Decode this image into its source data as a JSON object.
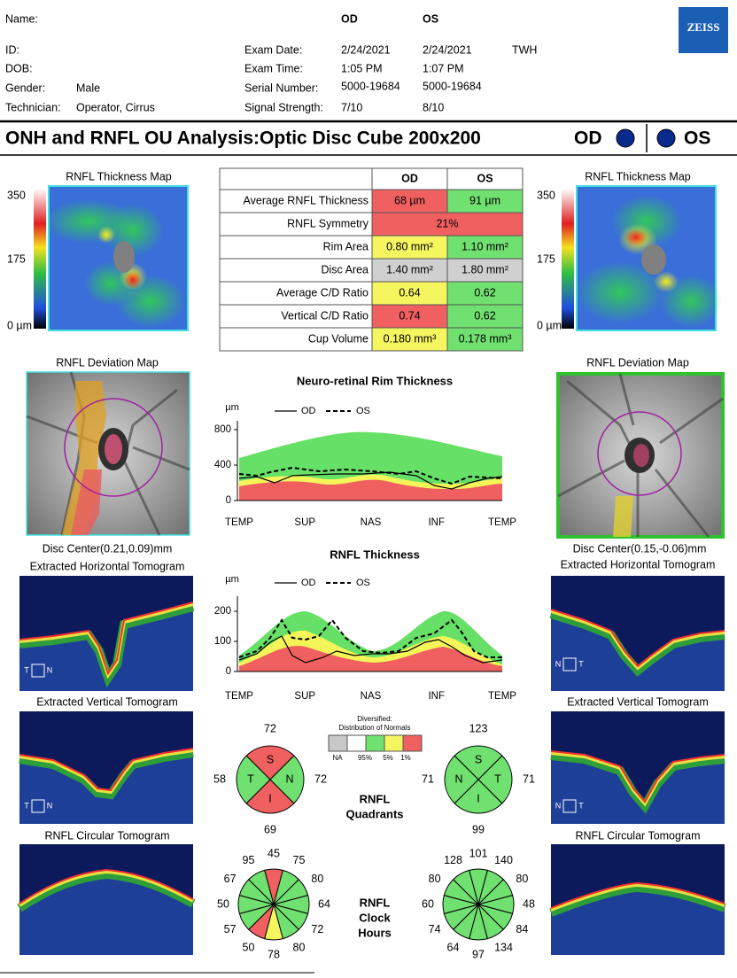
{
  "header": {
    "name_label": "Name:",
    "id_label": "ID:",
    "dob_label": "DOB:",
    "gender_label": "Gender:",
    "gender": "Male",
    "technician_label": "Technician:",
    "technician": "Operator, Cirrus",
    "od": "OD",
    "os": "OS",
    "logo": "ZEISS",
    "operator": "TWH",
    "fields": [
      {
        "label": "Exam Date:",
        "od": "2/24/2021",
        "os": "2/24/2021"
      },
      {
        "label": "Exam Time:",
        "od": "1:05 PM",
        "os": "1:07 PM"
      },
      {
        "label": "Serial Number:",
        "od": "5000-19684",
        "os": "5000-19684"
      },
      {
        "label": "Signal Strength:",
        "od": "7/10",
        "os": "8/10"
      }
    ]
  },
  "title": {
    "text": "ONH and RNFL OU Analysis:Optic Disc Cube 200x200",
    "od": "OD",
    "os": "OS",
    "eye_color": "#0a2a8c"
  },
  "table": {
    "headers": [
      "OD",
      "OS"
    ],
    "rows": [
      {
        "label": "Average RNFL Thickness",
        "od": "68 µm",
        "od_color": "#f06060",
        "os": "91 µm",
        "os_color": "#70e070"
      },
      {
        "label": "RNFL Symmetry",
        "both": "21%",
        "color": "#f06060"
      },
      {
        "label": "Rim Area",
        "od": "0.80 mm²",
        "od_color": "#f5f560",
        "os": "1.10 mm²",
        "os_color": "#70e070"
      },
      {
        "label": "Disc Area",
        "od": "1.40 mm²",
        "od_color": "#d0d0d0",
        "os": "1.80 mm²",
        "os_color": "#d0d0d0"
      },
      {
        "label": "Average C/D Ratio",
        "od": "0.64",
        "od_color": "#f5f560",
        "os": "0.62",
        "os_color": "#70e070"
      },
      {
        "label": "Vertical C/D Ratio",
        "od": "0.74",
        "od_color": "#f06060",
        "os": "0.62",
        "os_color": "#70e070"
      },
      {
        "label": "Cup Volume",
        "od": "0.180 mm³",
        "od_color": "#f5f560",
        "os": "0.178 mm³",
        "os_color": "#70e070"
      }
    ]
  },
  "maps": {
    "thickness_title": "RNFL Thickness Map",
    "scale": [
      "350",
      "175",
      "0 µm"
    ],
    "deviation_title": "RNFL Deviation Map",
    "od_disc_center": "Disc Center(0.21,0.09)mm",
    "os_disc_center": "Disc Center(0.15,-0.06)mm",
    "horizontal_title": "Extracted Horizontal Tomogram",
    "vertical_title": "Extracted Vertical Tomogram",
    "circular_title": "RNFL Circular Tomogram",
    "left_marks": [
      "T",
      "N"
    ],
    "right_marks": [
      "N",
      "T"
    ]
  },
  "rim_chart": {
    "title": "Neuro-retinal Rim Thickness",
    "unit": "µm",
    "legend": [
      "OD",
      "OS"
    ],
    "categories": [
      "TEMP",
      "SUP",
      "NAS",
      "INF",
      "TEMP"
    ],
    "ylim": [
      0,
      900
    ],
    "yticks": [
      0,
      400,
      800
    ]
  },
  "thickness_chart": {
    "title": "RNFL Thickness",
    "unit": "µm",
    "legend": [
      "OD",
      "OS"
    ],
    "categories": [
      "TEMP",
      "SUP",
      "NAS",
      "INF",
      "TEMP"
    ],
    "ylim": [
      0,
      250
    ],
    "yticks": [
      0,
      100,
      200
    ]
  },
  "quadrants": {
    "title": [
      "RNFL",
      "Quadrants"
    ],
    "legend_title": [
      "Diversified:",
      "Distribution of Normals"
    ],
    "legend_colors": [
      "#c8c8c8",
      "#ffffff",
      "#70e070",
      "#f5f560",
      "#f06060"
    ],
    "legend_labels": [
      "NA",
      "95%",
      "5%",
      "1%"
    ],
    "od": [
      {
        "name": "S",
        "value": "72",
        "color": "#f06060"
      },
      {
        "name": "N",
        "value": "72",
        "color": "#70e070"
      },
      {
        "name": "I",
        "value": "69",
        "color": "#f06060"
      },
      {
        "name": "T",
        "value": "58",
        "color": "#70e070"
      }
    ],
    "os": [
      {
        "name": "S",
        "value": "123",
        "color": "#70e070"
      },
      {
        "name": "T",
        "value": "71",
        "color": "#70e070"
      },
      {
        "name": "I",
        "value": "99",
        "color": "#70e070"
      },
      {
        "name": "N",
        "value": "71",
        "color": "#70e070"
      }
    ]
  },
  "clock_hours": {
    "title": [
      "RNFL",
      "Clock",
      "Hours"
    ],
    "od": {
      "values": [
        "45",
        "75",
        "80",
        "64",
        "72",
        "80",
        "78",
        "50",
        "57",
        "50",
        "67",
        "95"
      ],
      "colors": [
        "#f06060",
        "#70e070",
        "#70e070",
        "#70e070",
        "#70e070",
        "#70e070",
        "#f5f560",
        "#f06060",
        "#70e070",
        "#70e070",
        "#70e070",
        "#70e070"
      ]
    },
    "os": {
      "values": [
        "101",
        "140",
        "80",
        "48",
        "84",
        "134",
        "97",
        "64",
        "74",
        "60",
        "80",
        "128"
      ],
      "colors": [
        "#70e070",
        "#70e070",
        "#70e070",
        "#70e070",
        "#70e070",
        "#70e070",
        "#70e070",
        "#70e070",
        "#70e070",
        "#70e070",
        "#70e070",
        "#70e070"
      ]
    }
  }
}
